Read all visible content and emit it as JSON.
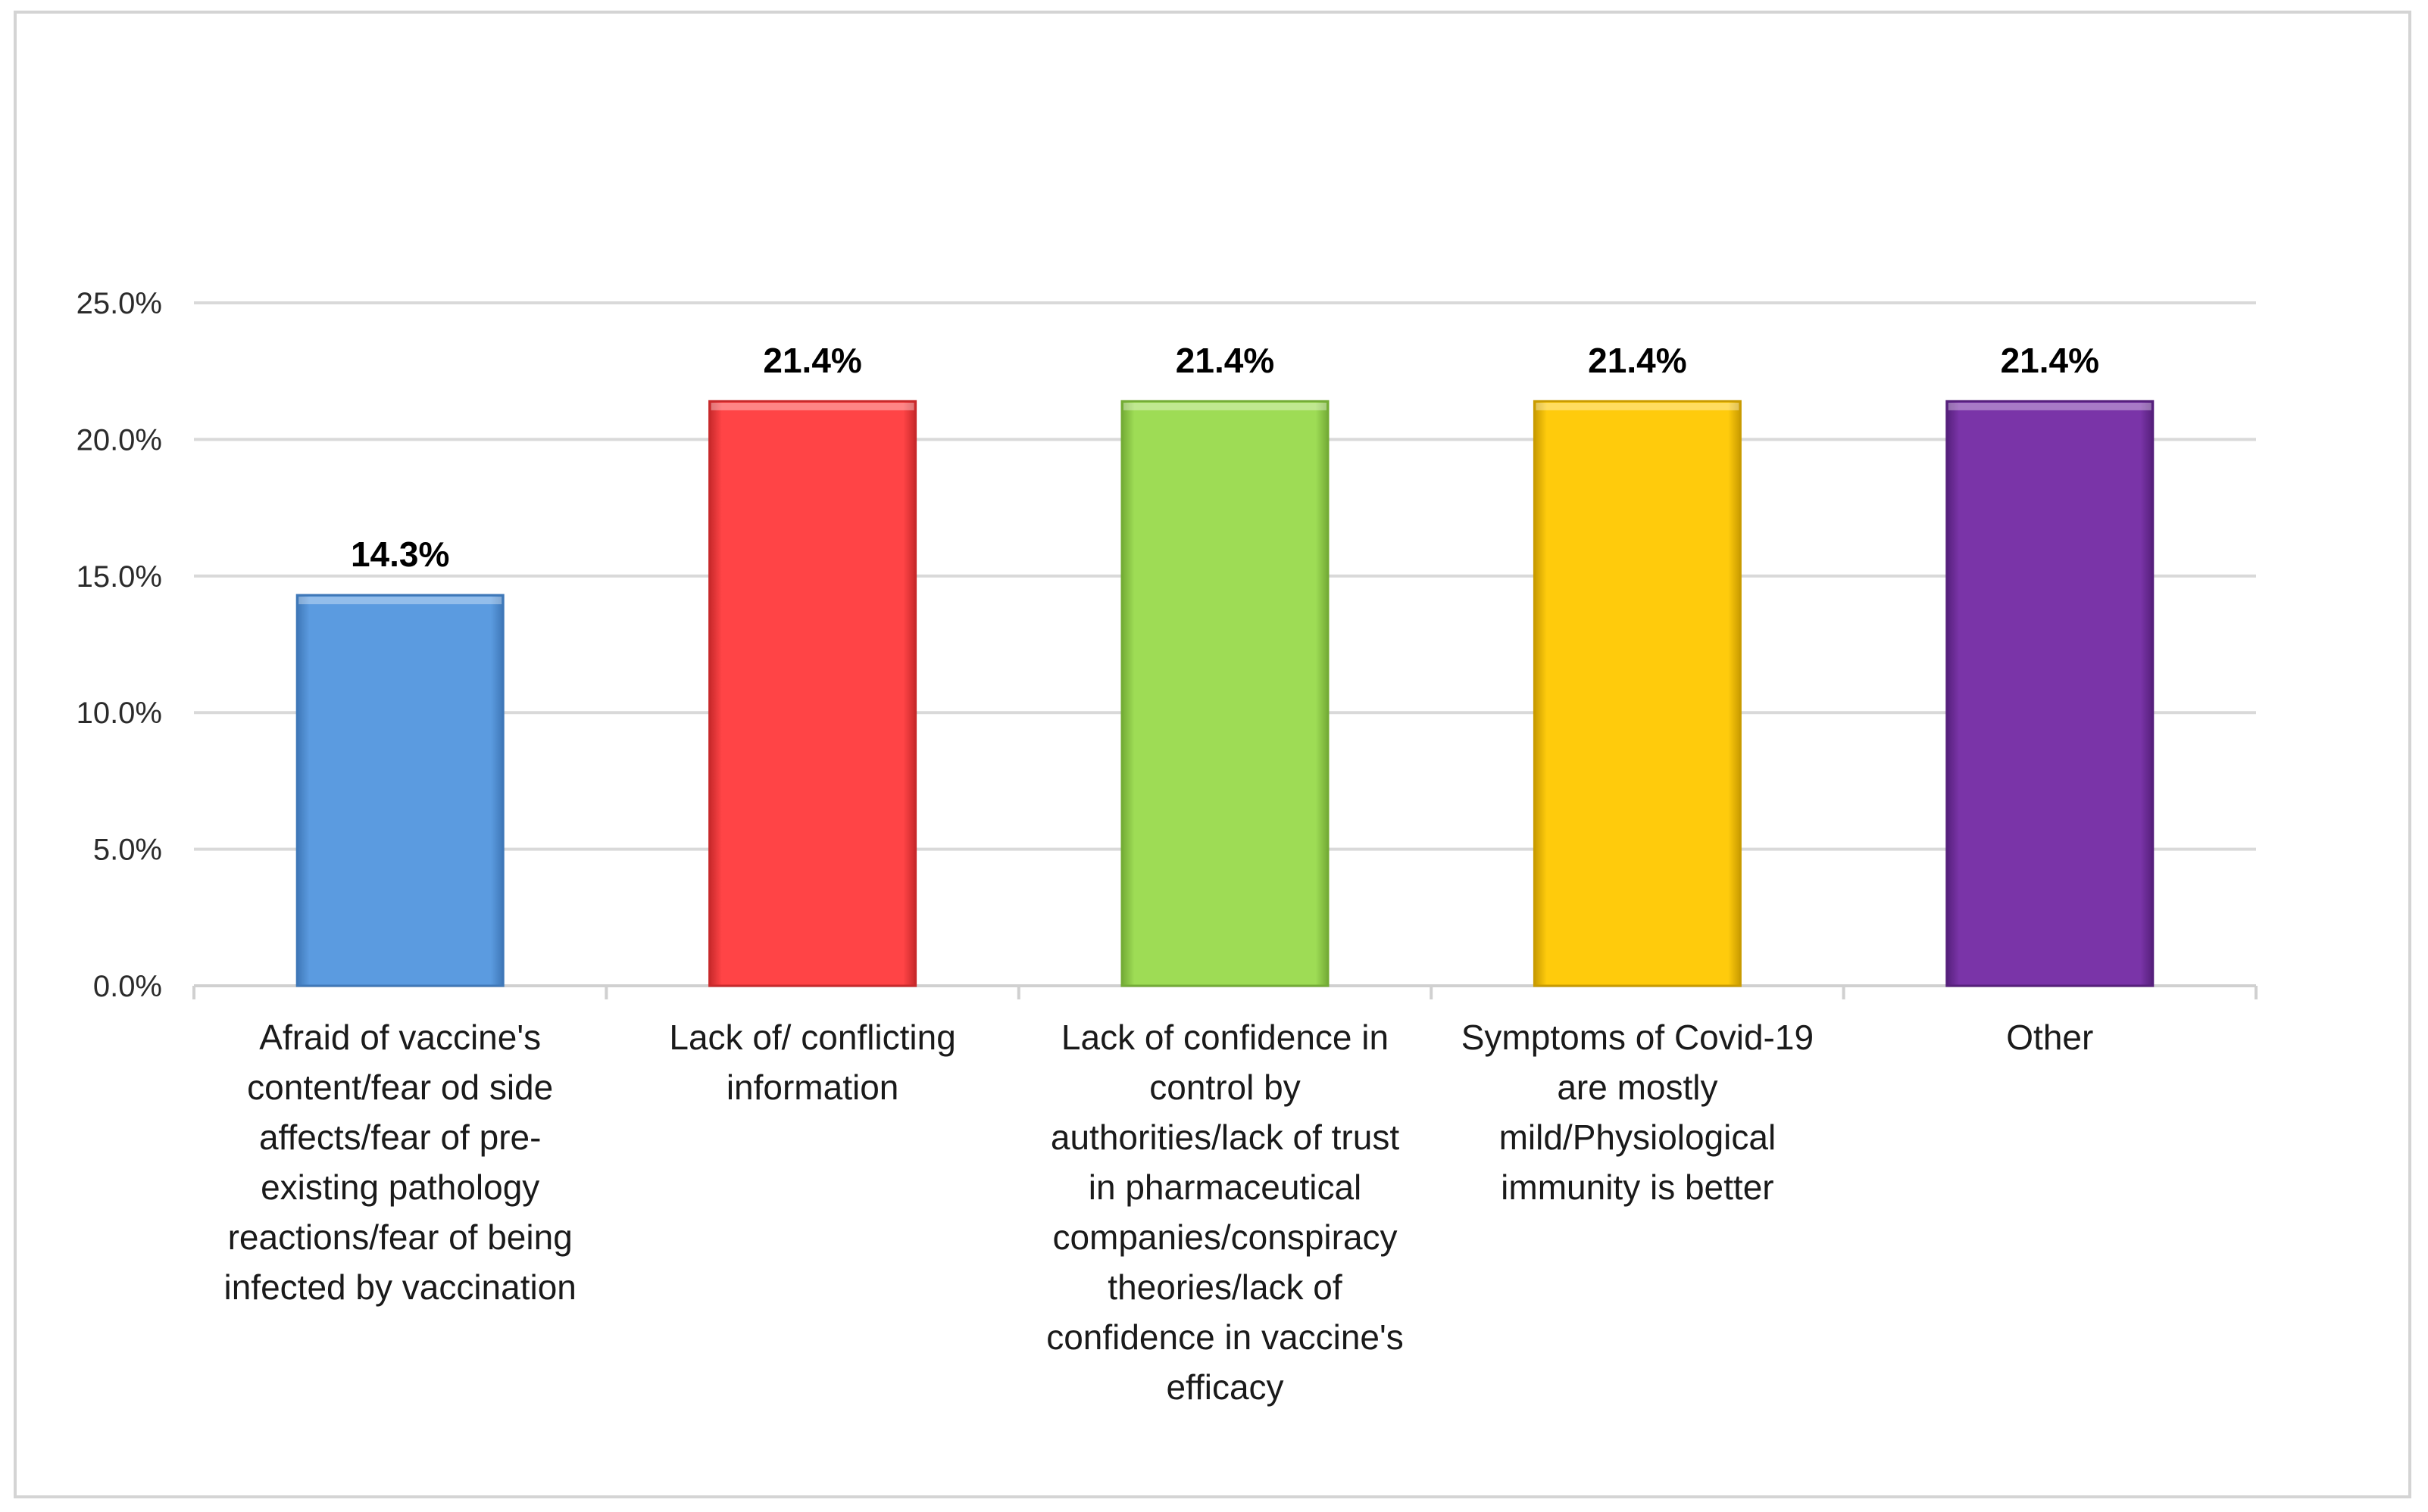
{
  "chart_data": {
    "type": "bar",
    "title": "",
    "xlabel": "",
    "ylabel": "",
    "ylim": [
      0,
      25
    ],
    "y_ticks": [
      0,
      5,
      10,
      15,
      20,
      25
    ],
    "y_tick_labels": [
      "0.0%",
      "5.0%",
      "10.0%",
      "15.0%",
      "20.0%",
      "25.0%"
    ],
    "grid": true,
    "legend": "none",
    "categories": [
      [
        "Afraid of vaccine's",
        "content/fear od side",
        "affects/fear of pre-",
        "existing pathology",
        "reactions/fear of being",
        "infected by vaccination"
      ],
      [
        "Lack of/ conflicting",
        "information"
      ],
      [
        "Lack of confidence in",
        "control by",
        "authorities/lack of trust",
        "in pharmaceutical",
        "companies/conspiracy",
        "theories/lack of",
        "confidence in vaccine's",
        "efficacy"
      ],
      [
        "Symptoms of Covid-19",
        "are mostly",
        "mild/Physiological",
        "immunity is better"
      ],
      [
        "Other"
      ]
    ],
    "values": [
      14.3,
      21.4,
      21.4,
      21.4,
      21.4
    ],
    "value_labels": [
      "14.3%",
      "21.4%",
      "21.4%",
      "21.4%",
      "21.4%"
    ],
    "colors": [
      "#5b9be0",
      "#ff4446",
      "#9edc55",
      "#ffcb0c",
      "#7a34a8"
    ],
    "border_colors": [
      "#3f78b8",
      "#c8292b",
      "#74ac36",
      "#c99b00",
      "#56207c"
    ]
  }
}
